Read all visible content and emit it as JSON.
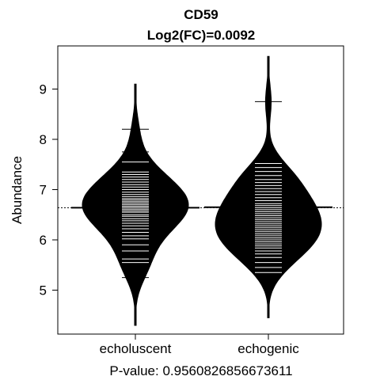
{
  "chart_data": {
    "type": "beanplot",
    "title": "CD59",
    "subtitle": "Log2(FC)=0.0092",
    "xlabel": "",
    "ylabel": "Abundance",
    "footer": "P-value: 0.9560826856673611",
    "ylim": [
      4.2,
      9.9
    ],
    "yticks": [
      5,
      6,
      7,
      8,
      9
    ],
    "categories": [
      "echoluscent",
      "echogenic"
    ],
    "overall_mean": 6.64,
    "series": [
      {
        "group_mean": 6.64,
        "min_value": 4.3,
        "max_value": 9.1,
        "peak_value": 6.65,
        "observations": [
          5.25,
          5.42,
          5.55,
          5.62,
          5.78,
          5.9,
          6.02,
          6.08,
          6.15,
          6.22,
          6.28,
          6.33,
          6.38,
          6.42,
          6.47,
          6.5,
          6.55,
          6.58,
          6.61,
          6.64,
          6.67,
          6.7,
          6.73,
          6.76,
          6.79,
          6.82,
          6.86,
          6.9,
          6.95,
          7.0,
          7.05,
          7.1,
          7.15,
          7.2,
          7.25,
          7.3,
          7.35,
          7.55,
          7.75,
          8.2
        ]
      },
      {
        "group_mean": 6.65,
        "min_value": 4.45,
        "max_value": 9.65,
        "peak_value": 6.25,
        "observations": [
          5.35,
          5.45,
          5.55,
          5.65,
          5.72,
          5.78,
          5.84,
          5.88,
          5.92,
          5.96,
          6.0,
          6.04,
          6.08,
          6.12,
          6.16,
          6.2,
          6.24,
          6.28,
          6.32,
          6.36,
          6.4,
          6.44,
          6.48,
          6.52,
          6.56,
          6.6,
          6.64,
          6.68,
          6.72,
          6.78,
          6.84,
          6.9,
          6.96,
          7.02,
          7.08,
          7.14,
          7.2,
          7.28,
          7.36,
          7.44,
          7.52,
          8.75
        ]
      }
    ]
  }
}
